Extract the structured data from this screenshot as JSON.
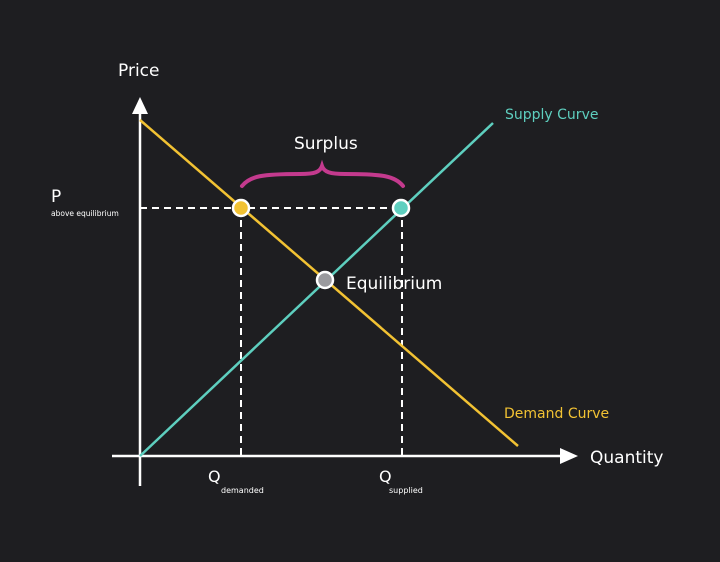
{
  "labels": {
    "y_axis": "Price",
    "x_axis": "Quantity",
    "supply": "Supply Curve",
    "demand": "Demand Curve",
    "surplus": "Surplus",
    "equilibrium": "Equilibrium",
    "p_main": "P",
    "p_sub": "above equilibrium",
    "qd_main": "Q",
    "qd_sub": "demanded",
    "qs_main": "Q",
    "qs_sub": "supplied"
  },
  "colors": {
    "background": "#1e1e21",
    "supply": "#5ecfbf",
    "demand": "#f2c233",
    "surplus_brace": "#c43a8e",
    "equilibrium_point": "#9a9a9e",
    "axes": "#ffffff"
  }
}
